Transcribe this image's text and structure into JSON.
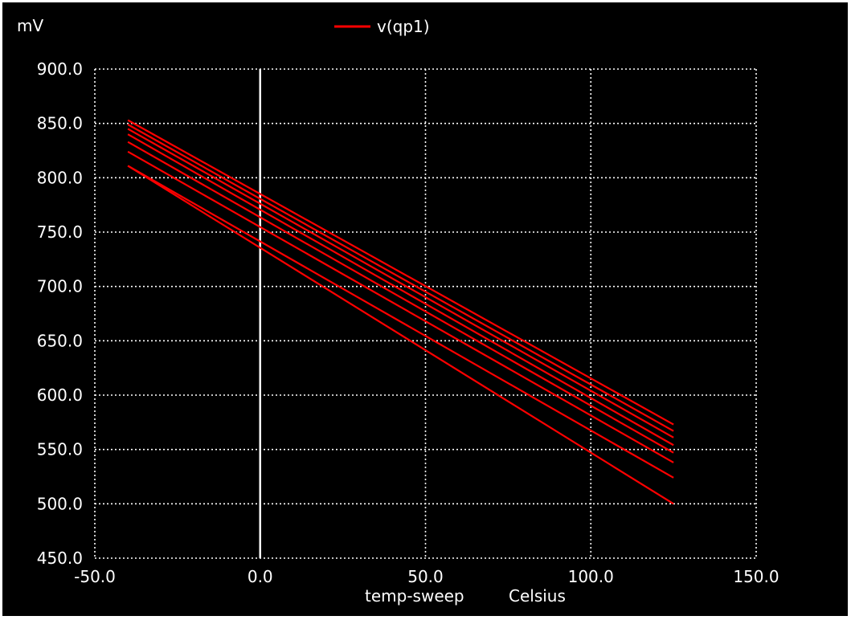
{
  "chart_data": {
    "type": "line",
    "y_unit": "mV",
    "xlabel": "temp-sweep",
    "xunit": "Celsius",
    "xlim": [
      -50,
      150
    ],
    "ylim": [
      450,
      900
    ],
    "xticks": [
      "-50.0",
      "0.0",
      "50.0",
      "100.0",
      "150.0"
    ],
    "yticks": [
      "900.0",
      "850.0",
      "800.0",
      "750.0",
      "700.0",
      "650.0",
      "600.0",
      "550.0",
      "500.0",
      "450.0"
    ],
    "grid": true,
    "legend_position": "top-center",
    "legend": [
      {
        "name": "v(qp1)",
        "color": "#ff0000"
      }
    ],
    "vertical_marker_x": 0,
    "x": [
      -40,
      125
    ],
    "series": [
      {
        "values": [
          853,
          573
        ]
      },
      {
        "values": [
          849,
          567
        ]
      },
      {
        "values": [
          845,
          561
        ]
      },
      {
        "values": [
          840,
          554
        ]
      },
      {
        "values": [
          833,
          547
        ]
      },
      {
        "values": [
          824,
          538
        ]
      },
      {
        "values": [
          811,
          524
        ]
      },
      {
        "values": [
          811,
          500
        ]
      }
    ],
    "line_color": "#ff0000"
  }
}
